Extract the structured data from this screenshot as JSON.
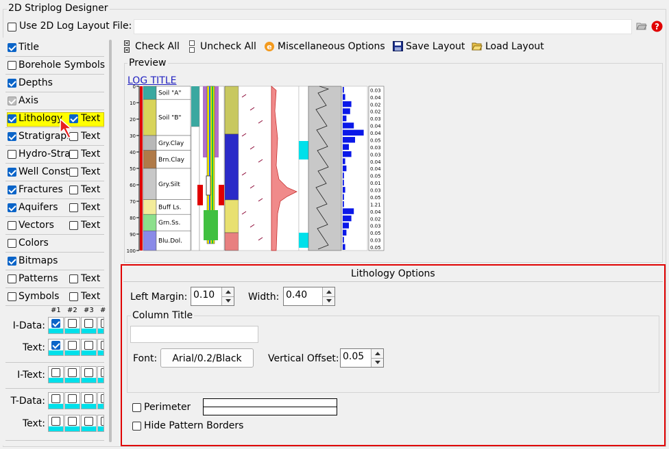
{
  "window": {
    "title": "2D Striplog Designer"
  },
  "layout_file": {
    "label": "Use 2D Log Layout File:",
    "value": ""
  },
  "left_list": [
    {
      "name": "title",
      "label": "Title",
      "checked": true,
      "text_label": null
    },
    {
      "name": "borehole-symbols",
      "label": "Borehole Symbols",
      "checked": false,
      "text_label": null
    },
    {
      "name": "depths",
      "label": "Depths",
      "checked": true,
      "text_label": null
    },
    {
      "name": "axis",
      "label": "Axis",
      "checked": true,
      "grey": true,
      "text_label": null
    },
    {
      "name": "lithology",
      "label": "Lithology",
      "checked": true,
      "text_label": "Text",
      "text_checked": true,
      "selected": true
    },
    {
      "name": "stratigraphy",
      "label": "Stratigraphy",
      "checked": true,
      "text_label": "Text",
      "text_checked": false
    },
    {
      "name": "hydro-strat",
      "label": "Hydro-Strat",
      "checked": false,
      "text_label": "Text",
      "text_checked": false
    },
    {
      "name": "well-construction",
      "label": "Well Const",
      "checked": true,
      "text_label": "Text",
      "text_checked": false
    },
    {
      "name": "fractures",
      "label": "Fractures",
      "checked": true,
      "text_label": "Text",
      "text_checked": false
    },
    {
      "name": "aquifers",
      "label": "Aquifers",
      "checked": true,
      "text_label": "Text",
      "text_checked": false
    },
    {
      "name": "vectors",
      "label": "Vectors",
      "checked": false,
      "text_label": "Text",
      "text_checked": false
    },
    {
      "name": "colors",
      "label": "Colors",
      "checked": false,
      "text_label": null
    },
    {
      "name": "bitmaps",
      "label": "Bitmaps",
      "checked": true,
      "text_label": null
    },
    {
      "name": "patterns",
      "label": "Patterns",
      "checked": false,
      "text_label": "Text",
      "text_checked": false
    },
    {
      "name": "symbols",
      "label": "Symbols",
      "checked": false,
      "text_label": "Text",
      "text_checked": false
    }
  ],
  "data_grid": {
    "columns": [
      "#1",
      "#2",
      "#3",
      "#"
    ],
    "rows": [
      {
        "label": "I-Data:",
        "checks": [
          true,
          false,
          false,
          false
        ]
      },
      {
        "label": "Text:",
        "checks": [
          true,
          false,
          false,
          false
        ]
      },
      {
        "label": "I-Text:",
        "checks": [
          false,
          false,
          false,
          false
        ]
      },
      {
        "label": "T-Data:",
        "checks": [
          false,
          false,
          false,
          false
        ]
      },
      {
        "label": "Text:",
        "checks": [
          false,
          false,
          false,
          false
        ]
      }
    ]
  },
  "toolbar": {
    "check_all": "Check All",
    "uncheck_all": "Uncheck All",
    "misc_options": "Miscellaneous Options",
    "save_layout": "Save Layout",
    "load_layout": "Load Layout"
  },
  "preview": {
    "label": "Preview",
    "log_title": "LOG TITLE",
    "depth_ticks": [
      "0",
      "10",
      "20",
      "30",
      "40",
      "50",
      "60",
      "70",
      "80",
      "90",
      "100"
    ],
    "lithology": [
      {
        "name": "Soil \"A\"",
        "color": "#3aa8a0",
        "from": 0,
        "to": 8
      },
      {
        "name": "Soil \"B\"",
        "color": "#d8d45a",
        "from": 8,
        "to": 30
      },
      {
        "name": "Gry.Clay",
        "color": "#b8b8b8",
        "from": 30,
        "to": 39
      },
      {
        "name": "Brn.Clay",
        "color": "#b07a48",
        "from": 39,
        "to": 50
      },
      {
        "name": "Gry.Silt",
        "color": "#c8c8c8",
        "from": 50,
        "to": 69
      },
      {
        "name": "Buff Ls.",
        "color": "#f3ec9a",
        "from": 69,
        "to": 78
      },
      {
        "name": "Grn.Ss.",
        "color": "#8ce08c",
        "from": 78,
        "to": 88
      },
      {
        "name": "Blu.Dol.",
        "color": "#8a8ae8",
        "from": 88,
        "to": 100
      }
    ],
    "values": [
      "0.03",
      "0.04",
      "0.02",
      "0.02",
      "0.03",
      "0.04",
      "0.04",
      "0.05",
      "0.03",
      "0.03",
      "0.04",
      "0.04",
      "0.05",
      "0.01",
      "0.03",
      "0.05",
      "1.21",
      "0.04",
      "0.02",
      "0.03",
      "0.05",
      "0.03",
      "0.05"
    ],
    "bars": [
      0.05,
      0.1,
      0.35,
      0.3,
      0.15,
      0.45,
      0.85,
      0.5,
      0.25,
      0.35,
      0.1,
      0.15,
      0.05,
      0.05,
      0.1,
      0.05,
      0.05,
      0.45,
      0.35,
      0.25,
      0.15,
      0.05,
      0.1
    ]
  },
  "options": {
    "title": "Lithology Options",
    "left_margin_label": "Left Margin:",
    "left_margin_value": "0.10",
    "width_label": "Width:",
    "width_value": "0.40",
    "column_title_group": "Column Title",
    "column_title_value": "",
    "font_label": "Font:",
    "font_button": "Arial/0.2/Black",
    "vertical_offset_label": "Vertical Offset:",
    "vertical_offset_value": "0.05",
    "perimeter_label": "Perimeter",
    "hide_pattern_borders_label": "Hide Pattern Borders"
  },
  "colors": {
    "accent": "#0a64c8",
    "highlight": "#ffff00",
    "options_border": "#e00000",
    "cyan": "#00e0ea"
  }
}
